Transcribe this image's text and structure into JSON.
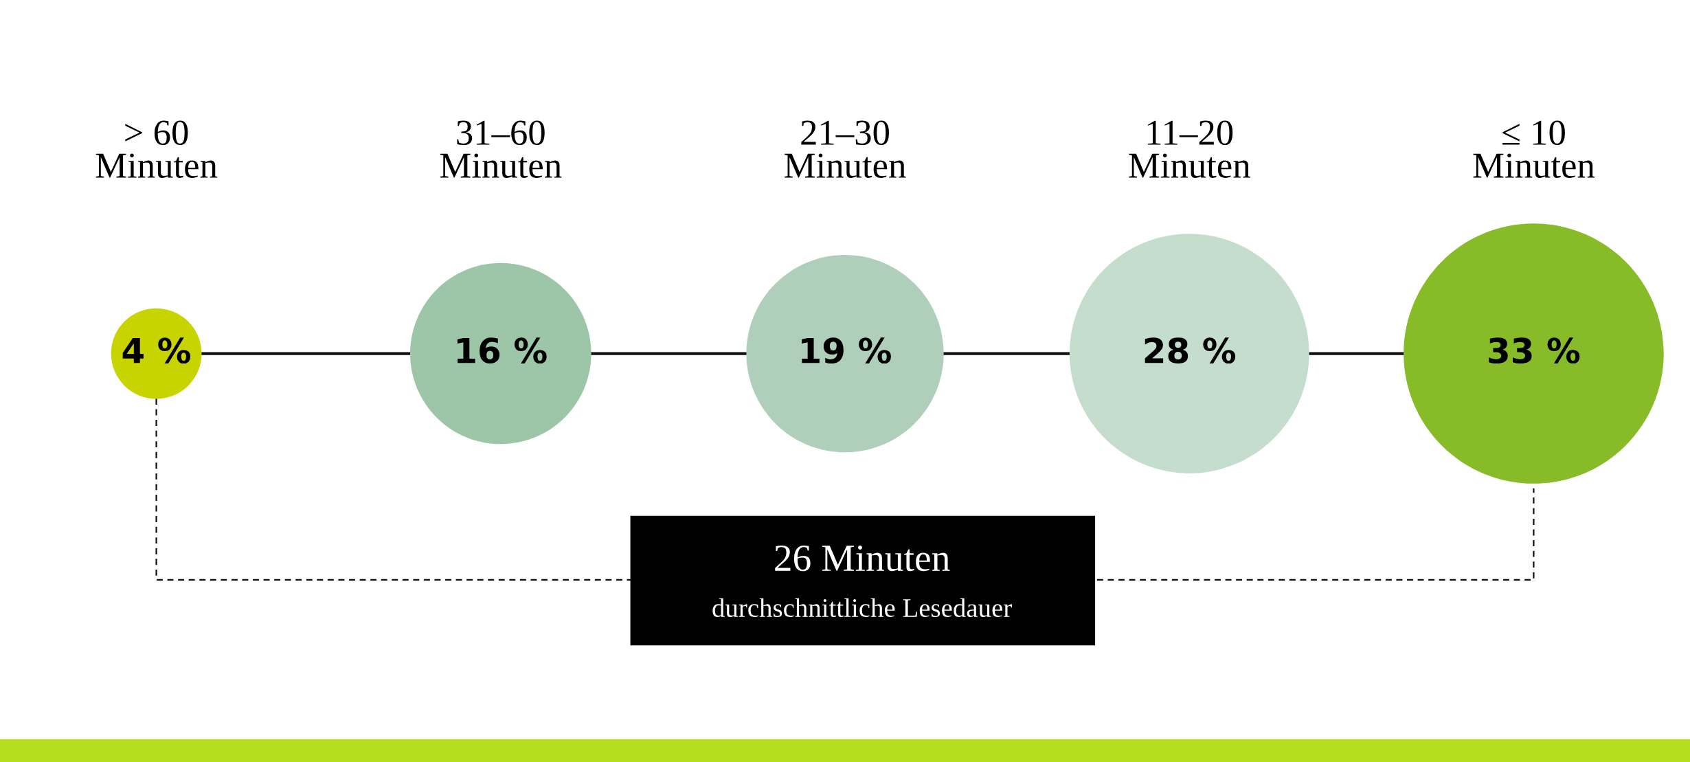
{
  "chart_data": {
    "type": "other",
    "categories": [
      "> 60\nMinuten",
      "31–60\nMinuten",
      "21–30\nMinuten",
      "11–20\nMinuten",
      "≤ 10\nMinuten"
    ],
    "values": [
      4,
      16,
      19,
      28,
      33
    ],
    "value_labels": [
      "4 %",
      "16 %",
      "19 %",
      "28 %",
      "33 %"
    ],
    "colors": [
      "#c8d400",
      "#9dc5a7",
      "#b0cfba",
      "#c5ddcd",
      "#88bb28"
    ],
    "annotations": [
      "26 Minuten",
      "durchschnittliche Lesedauer"
    ]
  }
}
